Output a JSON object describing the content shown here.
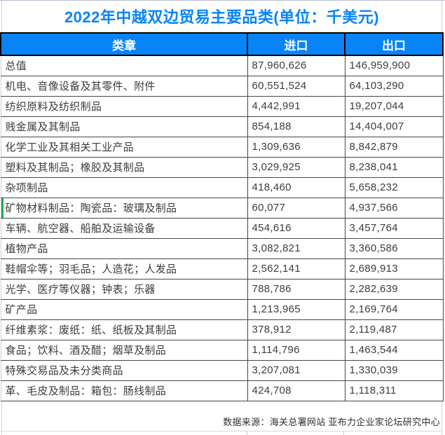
{
  "page": {
    "title": "2022年中越双边贸易主要品类(单位：千美元)",
    "source_note": "数据来源：海关总署网站 亚布力企业家论坛研究中心"
  },
  "colors": {
    "accent_blue": "#0984f8",
    "header_text": "#ffffff",
    "body_text": "#3c3c3c",
    "row_marker_green": "#1faa59",
    "gridline_light": "#ccd1de",
    "table_border_dark": "#000000"
  },
  "table": {
    "headers": [
      "类章",
      "进口",
      "出口"
    ],
    "rows": [
      {
        "category": "总值",
        "import": "87,960,626",
        "export": "146,959,900"
      },
      {
        "category": "机电、音像设备及其零件、附件",
        "import": "60,551,524",
        "export": "64,103,290"
      },
      {
        "category": "纺织原料及纺织制品",
        "import": "4,442,991",
        "export": "19,207,044"
      },
      {
        "category": "贱金属及其制品",
        "import": "854,188",
        "export": "14,404,007"
      },
      {
        "category": "化学工业及其相关工业产品",
        "import": "1,309,636",
        "export": "8,842,879"
      },
      {
        "category": "塑料及其制品；橡胶及其制品",
        "import": "3,029,925",
        "export": "8,238,041"
      },
      {
        "category": "杂项制品",
        "import": "418,460",
        "export": "5,658,232"
      },
      {
        "category": "矿物材料制品：陶瓷品：玻璃及制品",
        "import": "60,077",
        "export": "4,937,566"
      },
      {
        "category": "车辆、航空器、船舶及运输设备",
        "import": "454,616",
        "export": "3,457,764"
      },
      {
        "category": "植物产品",
        "import": "3,082,821",
        "export": "3,360,586"
      },
      {
        "category": "鞋帽伞等；羽毛品；人造花；人发品",
        "import": "2,562,141",
        "export": "2,689,913"
      },
      {
        "category": "光学、医疗等仪器；钟表；乐器",
        "import": "788,786",
        "export": "2,282,639"
      },
      {
        "category": "矿产品",
        "import": "1,213,965",
        "export": "2,169,764"
      },
      {
        "category": "纤维素浆：废纸：纸、纸板及其制品",
        "import": "378,912",
        "export": "2,119,487"
      },
      {
        "category": "食品；饮料、酒及醋；烟草及制品",
        "import": "1,114,796",
        "export": "1,463,544"
      },
      {
        "category": "特殊交易品及未分类商品",
        "import": "3,207,081",
        "export": "1,330,039"
      },
      {
        "category": "革、毛皮及制品：箱包：肠线制品",
        "import": "424,708",
        "export": "1,118,311"
      }
    ]
  },
  "chart_data": {
    "type": "table",
    "title": "2022年中越双边贸易主要品类(单位：千美元)",
    "unit": "千美元",
    "columns": [
      "类章",
      "进口",
      "出口"
    ],
    "rows": [
      [
        "总值",
        87960626,
        146959900
      ],
      [
        "机电、音像设备及其零件、附件",
        60551524,
        64103290
      ],
      [
        "纺织原料及纺织制品",
        4442991,
        19207044
      ],
      [
        "贱金属及其制品",
        854188,
        14404007
      ],
      [
        "化学工业及其相关工业产品",
        1309636,
        8842879
      ],
      [
        "塑料及其制品；橡胶及其制品",
        3029925,
        8238041
      ],
      [
        "杂项制品",
        418460,
        5658232
      ],
      [
        "矿物材料制品：陶瓷品：玻璃及制品",
        60077,
        4937566
      ],
      [
        "车辆、航空器、船舶及运输设备",
        454616,
        3457764
      ],
      [
        "植物产品",
        3082821,
        3360586
      ],
      [
        "鞋帽伞等；羽毛品；人造花；人发品",
        2562141,
        2689913
      ],
      [
        "光学、医疗等仪器；钟表；乐器",
        788786,
        2282639
      ],
      [
        "矿产品",
        1213965,
        2169764
      ],
      [
        "纤维素浆：废纸：纸、纸板及其制品",
        378912,
        2119487
      ],
      [
        "食品；饮料、酒及醋；烟草及制品",
        1114796,
        1463544
      ],
      [
        "特殊交易品及未分类商品",
        3207081,
        1330039
      ],
      [
        "革、毛皮及制品：箱包：肠线制品",
        424708,
        1118311
      ]
    ],
    "source": "数据来源：海关总署网站 亚布力企业家论坛研究中心"
  }
}
